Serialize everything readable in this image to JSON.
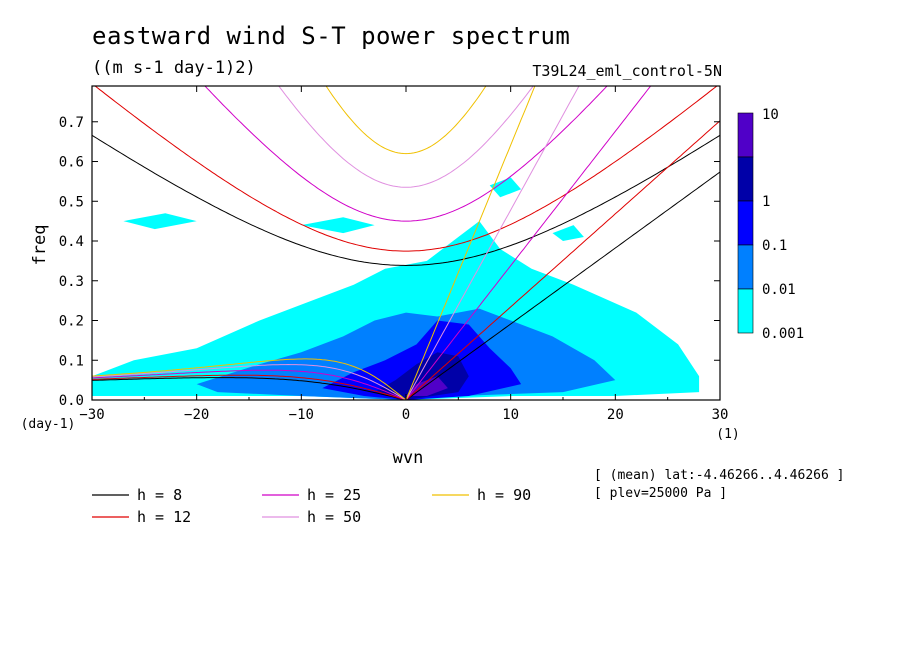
{
  "header": {
    "title": "eastward wind S-T power spectrum",
    "units": "((m s-1 day-1)2)",
    "run": "T39L24_eml_control-5N"
  },
  "meta": {
    "mean_lat": "[ (mean) lat:-4.46266..4.46266 ]",
    "plev": "[ plev=25000 Pa ]"
  },
  "chart_data": {
    "type": "heatmap",
    "xlabel": "wvn",
    "ylabel": "freq",
    "xunit": "(1)",
    "yunit": "(day-1)",
    "xlim": [
      -30,
      30
    ],
    "ylim": [
      0,
      0.79
    ],
    "xticks": [
      -30,
      -20,
      -10,
      0,
      10,
      20,
      30
    ],
    "yticks": [
      0.0,
      0.1,
      0.2,
      0.3,
      0.4,
      0.5,
      0.6,
      0.7
    ],
    "xtick_labels": [
      "−30",
      "−20",
      "−10",
      "0",
      "10",
      "20",
      "30"
    ],
    "ytick_labels": [
      "0.0",
      "0.1",
      "0.2",
      "0.3",
      "0.4",
      "0.5",
      "0.6",
      "0.7"
    ],
    "colorbar": {
      "levels": [
        "0.001",
        "0.01",
        "0.1",
        "1",
        "10"
      ],
      "colors": [
        "#00ffff",
        "#0080ff",
        "#0000ff",
        "#0000a8",
        "#5000c8"
      ]
    },
    "power_regions": [
      {
        "level": 0,
        "points": [
          [
            -30,
            0.06
          ],
          [
            -26,
            0.1
          ],
          [
            -20,
            0.13
          ],
          [
            -14,
            0.2
          ],
          [
            -10,
            0.24
          ],
          [
            -5,
            0.29
          ],
          [
            -2,
            0.33
          ],
          [
            2,
            0.35
          ],
          [
            5,
            0.41
          ],
          [
            7,
            0.45
          ],
          [
            9,
            0.38
          ],
          [
            12,
            0.33
          ],
          [
            16,
            0.29
          ],
          [
            22,
            0.22
          ],
          [
            26,
            0.14
          ],
          [
            28,
            0.06
          ],
          [
            28,
            0.02
          ],
          [
            20,
            0.01
          ],
          [
            10,
            0.01
          ],
          [
            0,
            0.0
          ],
          [
            -10,
            0.01
          ],
          [
            -20,
            0.01
          ],
          [
            -30,
            0.01
          ]
        ]
      },
      {
        "level": 0,
        "points": [
          [
            -27,
            0.45
          ],
          [
            -23,
            0.47
          ],
          [
            -20,
            0.45
          ],
          [
            -24,
            0.43
          ]
        ]
      },
      {
        "level": 0,
        "points": [
          [
            -10,
            0.44
          ],
          [
            -6,
            0.46
          ],
          [
            -3,
            0.44
          ],
          [
            -6,
            0.42
          ]
        ]
      },
      {
        "level": 0,
        "points": [
          [
            8,
            0.54
          ],
          [
            10,
            0.56
          ],
          [
            11,
            0.53
          ],
          [
            9,
            0.51
          ]
        ]
      },
      {
        "level": 0,
        "points": [
          [
            14,
            0.42
          ],
          [
            16,
            0.44
          ],
          [
            17,
            0.41
          ],
          [
            15,
            0.4
          ]
        ]
      },
      {
        "level": 1,
        "points": [
          [
            -20,
            0.04
          ],
          [
            -14,
            0.09
          ],
          [
            -10,
            0.12
          ],
          [
            -6,
            0.16
          ],
          [
            -3,
            0.2
          ],
          [
            0,
            0.22
          ],
          [
            3,
            0.21
          ],
          [
            7,
            0.23
          ],
          [
            10,
            0.2
          ],
          [
            14,
            0.16
          ],
          [
            18,
            0.1
          ],
          [
            20,
            0.05
          ],
          [
            15,
            0.02
          ],
          [
            5,
            0.01
          ],
          [
            0,
            0.0
          ],
          [
            -10,
            0.01
          ],
          [
            -18,
            0.02
          ]
        ]
      },
      {
        "level": 2,
        "points": [
          [
            -8,
            0.03
          ],
          [
            -5,
            0.07
          ],
          [
            -2,
            0.1
          ],
          [
            1,
            0.14
          ],
          [
            3,
            0.2
          ],
          [
            6,
            0.19
          ],
          [
            8,
            0.13
          ],
          [
            10,
            0.08
          ],
          [
            11,
            0.04
          ],
          [
            6,
            0.01
          ],
          [
            0,
            0.0
          ],
          [
            -4,
            0.01
          ]
        ]
      },
      {
        "level": 3,
        "points": [
          [
            -3,
            0.02
          ],
          [
            -1,
            0.05
          ],
          [
            1,
            0.09
          ],
          [
            3,
            0.12
          ],
          [
            5,
            0.11
          ],
          [
            6,
            0.06
          ],
          [
            5,
            0.02
          ],
          [
            0,
            0.0
          ]
        ]
      },
      {
        "level": 4,
        "points": [
          [
            0,
            0.01
          ],
          [
            1,
            0.04
          ],
          [
            3,
            0.06
          ],
          [
            4,
            0.03
          ],
          [
            2,
            0.01
          ]
        ]
      }
    ],
    "series": [
      {
        "name": "h =  8",
        "color": "#000000",
        "equiv_depth": 8
      },
      {
        "name": "h = 12",
        "color": "#e00000",
        "equiv_depth": 12
      },
      {
        "name": "h = 25",
        "color": "#d000c8",
        "equiv_depth": 25
      },
      {
        "name": "h = 50",
        "color": "#e090e0",
        "equiv_depth": 50
      },
      {
        "name": "h = 90",
        "color": "#f0c000",
        "equiv_depth": 90
      }
    ]
  }
}
